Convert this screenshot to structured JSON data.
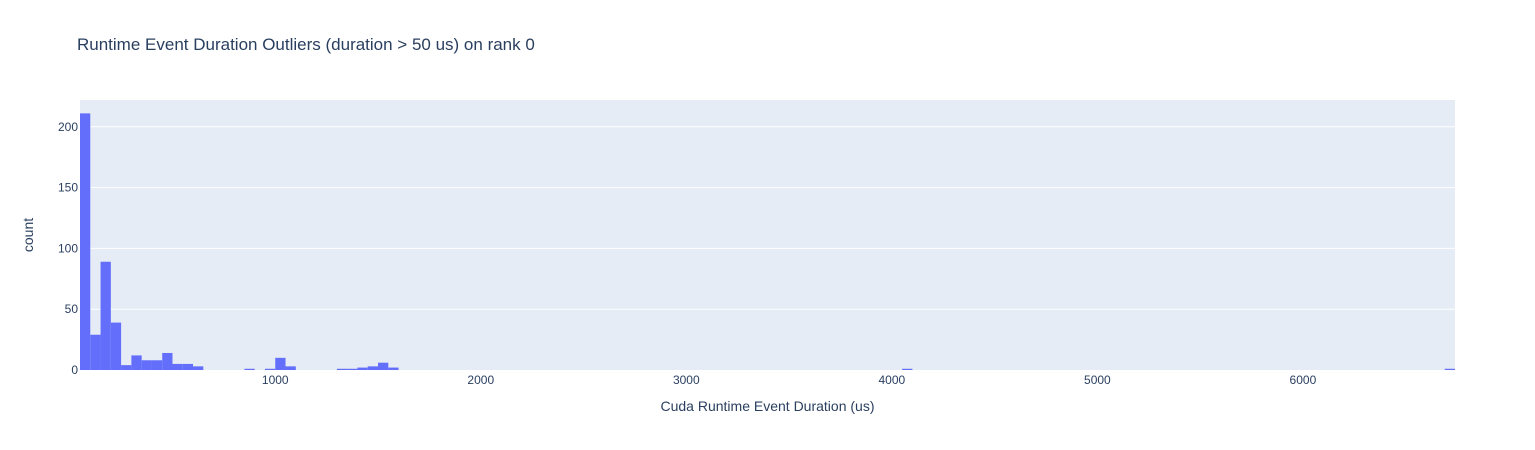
{
  "chart_data": {
    "type": "bar",
    "title": "Runtime Event Duration Outliers (duration > 50 us)  on rank 0",
    "xlabel": "Cuda Runtime Event Duration (us)",
    "ylabel": "count",
    "xlim": [
      50,
      6740
    ],
    "ylim": [
      0,
      222
    ],
    "x_ticks": [
      1000,
      2000,
      3000,
      4000,
      5000,
      6000
    ],
    "y_ticks": [
      0,
      50,
      100,
      150,
      200
    ],
    "bin_width": 50,
    "grid": true,
    "legend": "none",
    "colors": {
      "bar": "#636efa",
      "plot_bg": "#e5ecf6",
      "grid": "#ffffff",
      "text": "#2a3f5f"
    },
    "bins": [
      {
        "x0": 50,
        "value": 211
      },
      {
        "x0": 100,
        "value": 29
      },
      {
        "x0": 150,
        "value": 89
      },
      {
        "x0": 200,
        "value": 39
      },
      {
        "x0": 250,
        "value": 4
      },
      {
        "x0": 300,
        "value": 12
      },
      {
        "x0": 350,
        "value": 8
      },
      {
        "x0": 400,
        "value": 8
      },
      {
        "x0": 450,
        "value": 14
      },
      {
        "x0": 500,
        "value": 5
      },
      {
        "x0": 550,
        "value": 5
      },
      {
        "x0": 600,
        "value": 3
      },
      {
        "x0": 850,
        "value": 1
      },
      {
        "x0": 950,
        "value": 1
      },
      {
        "x0": 1000,
        "value": 10
      },
      {
        "x0": 1050,
        "value": 3
      },
      {
        "x0": 1300,
        "value": 1
      },
      {
        "x0": 1350,
        "value": 1
      },
      {
        "x0": 1400,
        "value": 2
      },
      {
        "x0": 1450,
        "value": 3
      },
      {
        "x0": 1500,
        "value": 6
      },
      {
        "x0": 1550,
        "value": 2
      },
      {
        "x0": 4050,
        "value": 1
      },
      {
        "x0": 6690,
        "value": 1
      }
    ]
  }
}
